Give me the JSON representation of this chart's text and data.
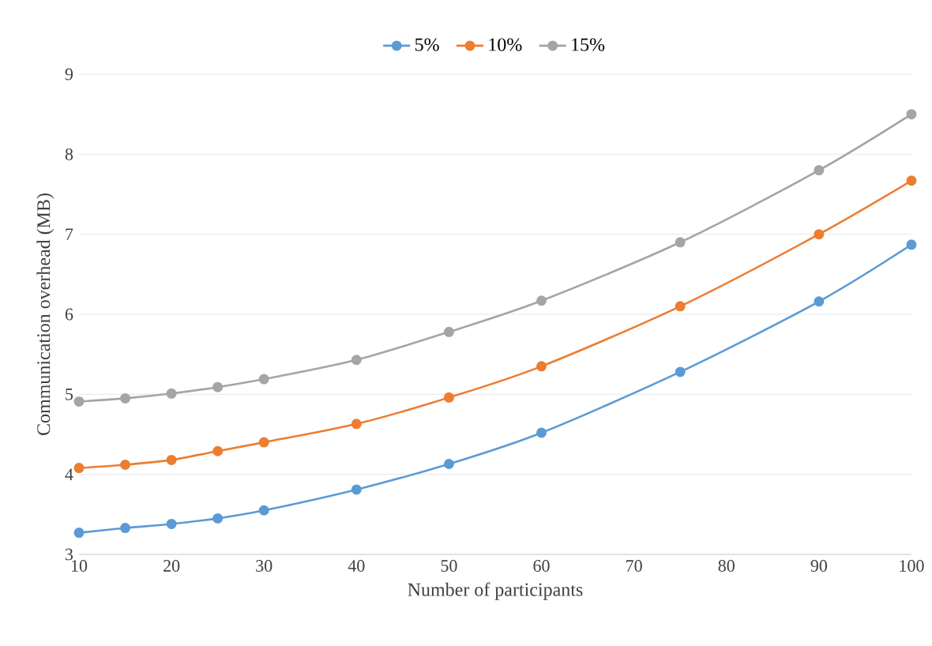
{
  "chart_data": {
    "type": "line",
    "xlabel": "Number of participants",
    "ylabel": "Communication overhead (MB)",
    "x": [
      10,
      15,
      20,
      25,
      30,
      40,
      50,
      60,
      75,
      90,
      100
    ],
    "series": [
      {
        "name": "5%",
        "color": "#5b9bd5",
        "values": [
          3.27,
          3.33,
          3.38,
          3.45,
          3.55,
          3.81,
          4.13,
          4.52,
          5.28,
          6.16,
          6.87
        ]
      },
      {
        "name": "10%",
        "color": "#ed7d31",
        "values": [
          4.08,
          4.12,
          4.18,
          4.29,
          4.4,
          4.63,
          4.96,
          5.35,
          6.1,
          7.0,
          7.67
        ]
      },
      {
        "name": "15%",
        "color": "#a5a5a5",
        "values": [
          4.91,
          4.95,
          5.01,
          5.09,
          5.19,
          5.43,
          5.78,
          6.17,
          6.9,
          7.8,
          8.5
        ]
      }
    ],
    "xlim": [
      10,
      100
    ],
    "xticks": [
      10,
      20,
      30,
      40,
      50,
      60,
      70,
      80,
      90,
      100
    ],
    "ylim": [
      3,
      9
    ],
    "yticks": [
      3,
      4,
      5,
      6,
      7,
      8,
      9
    ],
    "grid": "y",
    "legend": "top",
    "marker": "circle",
    "line_style": "solid"
  }
}
